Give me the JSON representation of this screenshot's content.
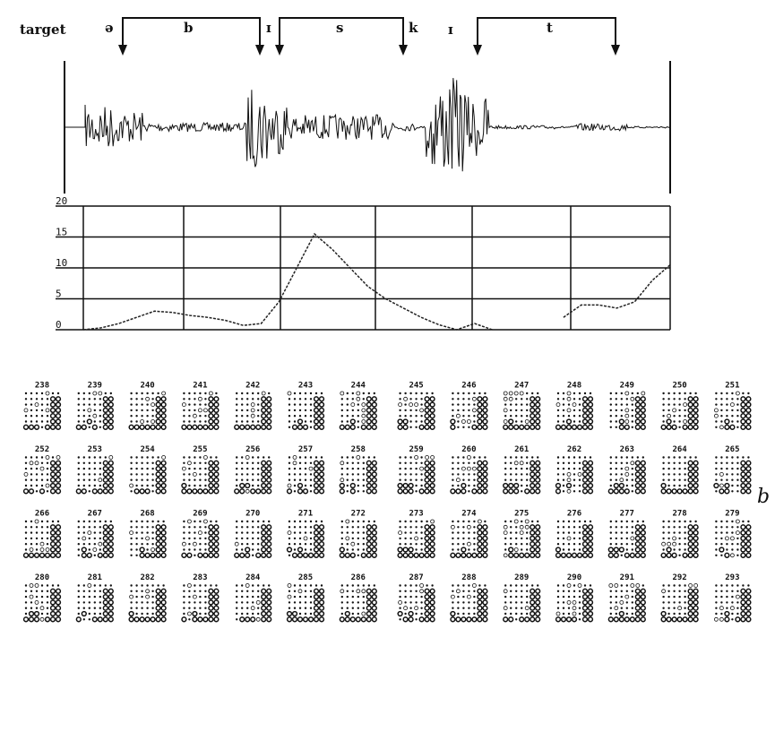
{
  "header": {
    "label": "target",
    "phonemes": [
      "ə",
      "b",
      "ɪ",
      "s",
      "k",
      "ɪ",
      "t"
    ]
  },
  "chart_data": {
    "type": "line",
    "ylim": [
      0,
      20
    ],
    "yticks": [
      0,
      5,
      10,
      15,
      20
    ],
    "color": "#222",
    "grid": true,
    "values": [
      0,
      0.3,
      1,
      2,
      3,
      2.8,
      2.3,
      2,
      1.5,
      0.7,
      1,
      4.5,
      10,
      15.5,
      13,
      10,
      7,
      5,
      3.5,
      2,
      0.8,
      0,
      1,
      0,
      null,
      null,
      null,
      2,
      4,
      4,
      3.5,
      4.5,
      8,
      10.5
    ]
  },
  "patterns": {
    "numbers": [
      238,
      239,
      240,
      241,
      242,
      243,
      244,
      245,
      246,
      247,
      248,
      249,
      250,
      251,
      252,
      253,
      254,
      255,
      256,
      257,
      258,
      259,
      260,
      261,
      262,
      263,
      264,
      265,
      266,
      267,
      268,
      269,
      270,
      271,
      272,
      273,
      274,
      275,
      276,
      277,
      278,
      279,
      280,
      281,
      282,
      283,
      284,
      285,
      286,
      287,
      288,
      289,
      290,
      291,
      292,
      293
    ],
    "label": "b"
  }
}
